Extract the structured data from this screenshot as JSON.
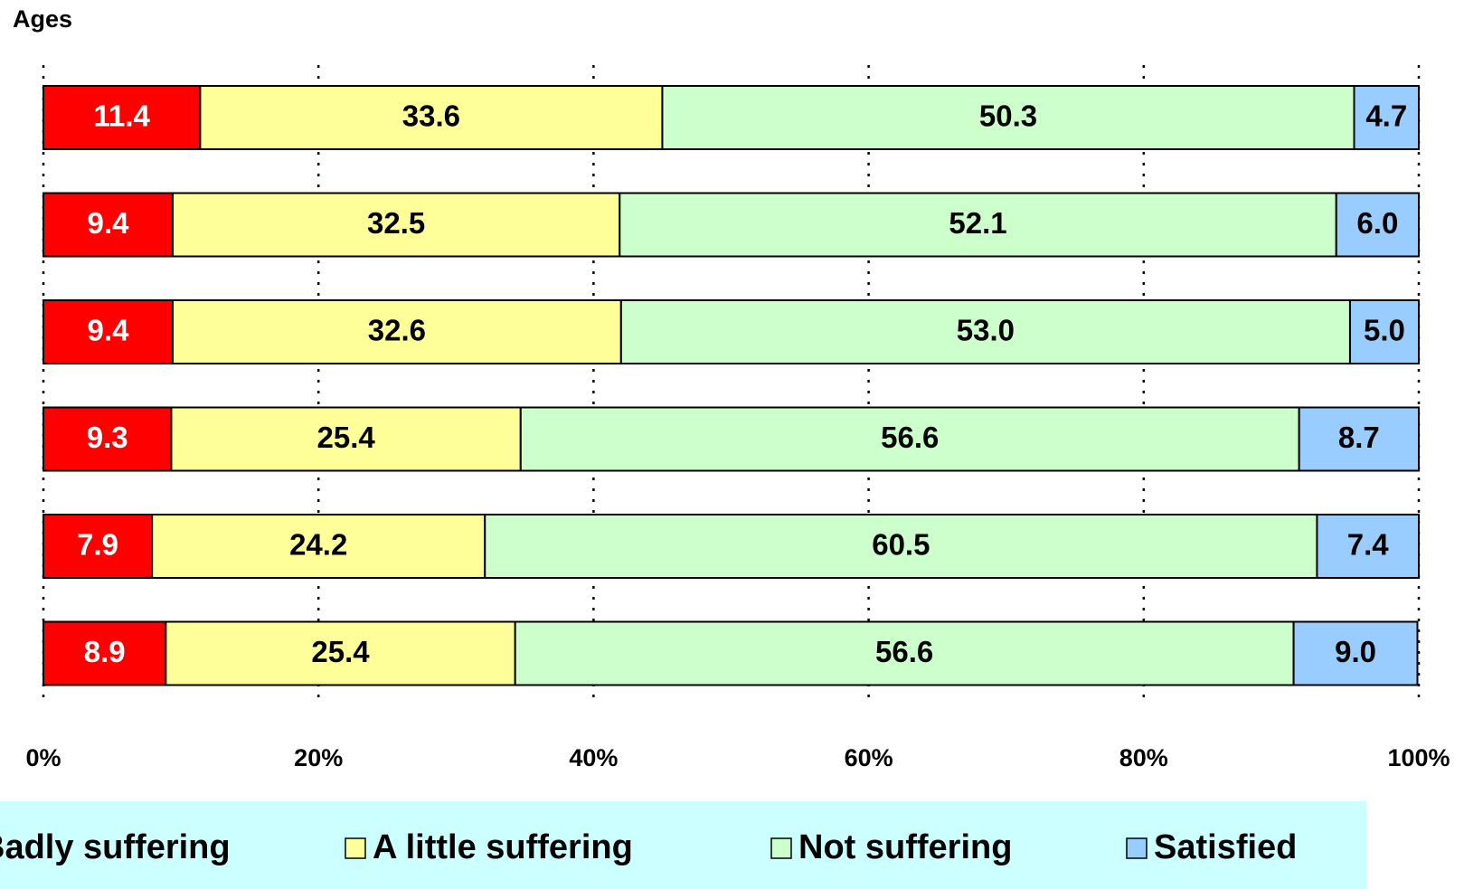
{
  "chart_data": {
    "type": "stacked-barh",
    "title": "Ages",
    "categories": [
      null,
      null,
      null,
      null,
      null,
      null
    ],
    "series": [
      {
        "name": "Badly suffering",
        "color": "#ff0000",
        "values": [
          11.4,
          9.4,
          9.4,
          9.3,
          7.9,
          8.9
        ],
        "value_labels": [
          "11.4",
          "9.4",
          "9.4",
          "9.3",
          "7.9",
          "8.9"
        ]
      },
      {
        "name": "A little suffering",
        "color": "#ffff99",
        "values": [
          33.6,
          32.5,
          32.6,
          25.4,
          24.2,
          25.4
        ],
        "value_labels": [
          "33.6",
          "32.5",
          "32.6",
          "25.4",
          "24.2",
          "25.4"
        ]
      },
      {
        "name": "Not suffering",
        "color": "#ccffcc",
        "values": [
          50.3,
          52.1,
          53.0,
          56.6,
          60.5,
          56.6
        ],
        "value_labels": [
          "50.3",
          "52.1",
          "53.0",
          "56.6",
          "60.5",
          "56.6"
        ]
      },
      {
        "name": "Satisfied",
        "color": "#99ccff",
        "values": [
          4.7,
          6.0,
          5.0,
          8.7,
          7.4,
          9.0
        ],
        "value_labels": [
          "4.7",
          "6.0",
          "5.0",
          "8.7",
          "7.4",
          "9.0"
        ]
      }
    ],
    "xlim": [
      0,
      100
    ],
    "xticks": [
      {
        "value": 0,
        "label": "0%"
      },
      {
        "value": 20,
        "label": "20%"
      },
      {
        "value": 40,
        "label": "40%"
      },
      {
        "value": 60,
        "label": "60%"
      },
      {
        "value": 80,
        "label": "80%"
      },
      {
        "value": 100,
        "label": "100%"
      }
    ],
    "grid": true,
    "legend": "bottom",
    "legend_background": "#ccffff"
  }
}
